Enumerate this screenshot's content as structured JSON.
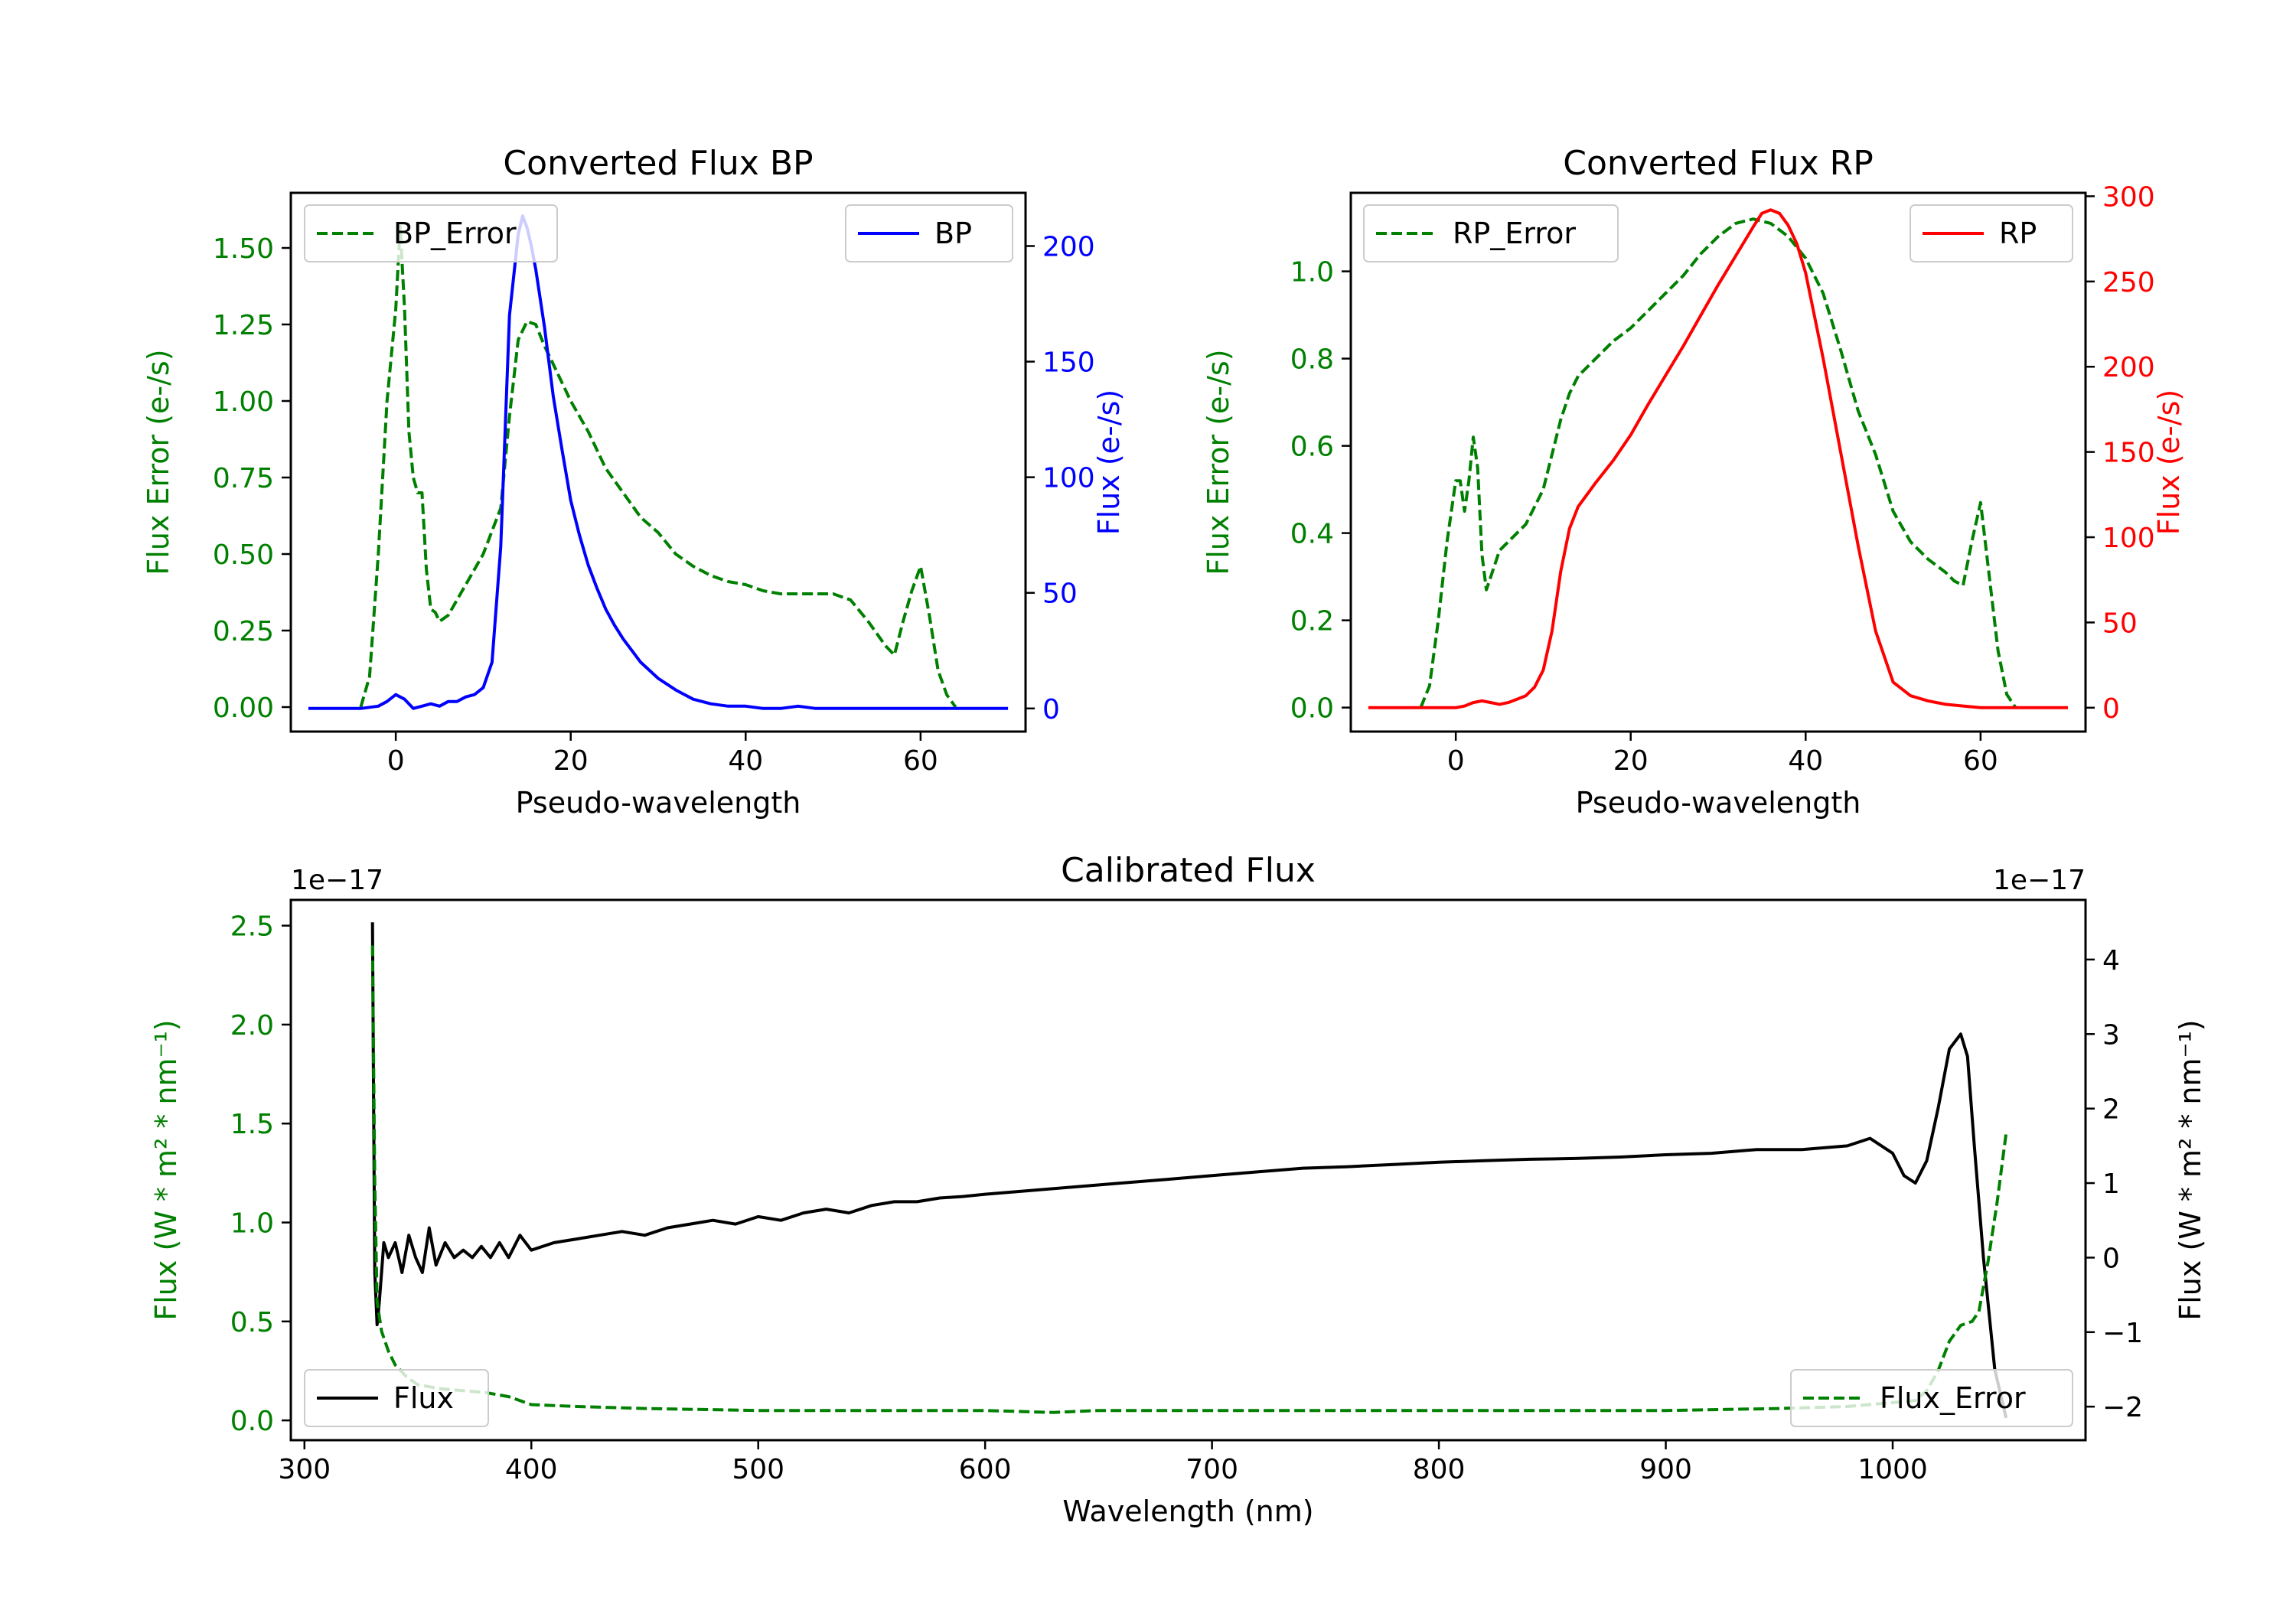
{
  "figure": {
    "colors": {
      "green": "#008000",
      "blue": "#0000ff",
      "red": "#ff0000",
      "black": "#000000"
    }
  },
  "chart_data": [
    {
      "id": "bp",
      "type": "line",
      "title": "Converted Flux BP",
      "xlabel": "Pseudo-wavelength",
      "ylabel_left": "Flux Error (e-/s)",
      "ylabel_right": "Flux (e-/s)",
      "xlim": [
        -12,
        72
      ],
      "ylim_left": [
        -0.08,
        1.68
      ],
      "ylim_right": [
        -10,
        223
      ],
      "xticks": [
        "0",
        "20",
        "40",
        "60"
      ],
      "xtick_values": [
        0,
        20,
        40,
        60
      ],
      "yticks_left": [
        "0.00",
        "0.25",
        "0.50",
        "0.75",
        "1.00",
        "1.25",
        "1.50"
      ],
      "ytick_values_left": [
        0,
        0.25,
        0.5,
        0.75,
        1.0,
        1.25,
        1.5
      ],
      "yticks_right": [
        "0",
        "50",
        "100",
        "150",
        "200"
      ],
      "ytick_values_right": [
        0,
        50,
        100,
        150,
        200
      ],
      "legend_left": "BP_Error",
      "legend_right": "BP",
      "series": [
        {
          "name": "BP_Error",
          "axis": "left",
          "style": "dashed",
          "color": "#008000",
          "x": [
            -4,
            -3,
            -2,
            -1,
            0,
            0.5,
            1,
            1.5,
            2,
            2.5,
            3,
            3.5,
            4,
            4.5,
            5,
            6,
            7,
            8,
            10,
            12,
            13,
            14,
            15,
            16,
            17,
            18,
            20,
            22,
            24,
            26,
            28,
            30,
            32,
            34,
            36,
            38,
            40,
            42,
            44,
            46,
            48,
            50,
            52,
            54,
            56,
            57,
            58,
            59,
            60,
            61,
            62,
            63,
            64
          ],
          "y": [
            0.0,
            0.1,
            0.5,
            1.0,
            1.3,
            1.57,
            1.3,
            0.9,
            0.75,
            0.7,
            0.7,
            0.45,
            0.32,
            0.31,
            0.28,
            0.3,
            0.35,
            0.4,
            0.5,
            0.65,
            0.95,
            1.2,
            1.26,
            1.25,
            1.18,
            1.12,
            1.0,
            0.9,
            0.78,
            0.7,
            0.62,
            0.57,
            0.5,
            0.46,
            0.43,
            0.41,
            0.4,
            0.38,
            0.37,
            0.37,
            0.37,
            0.37,
            0.35,
            0.28,
            0.2,
            0.17,
            0.28,
            0.38,
            0.46,
            0.3,
            0.12,
            0.04,
            0.0
          ]
        },
        {
          "name": "BP",
          "axis": "right",
          "style": "solid",
          "color": "#0000ff",
          "x": [
            -10,
            -6,
            -4,
            -2,
            -1,
            0,
            1,
            2,
            3,
            4,
            5,
            6,
            7,
            8,
            9,
            10,
            11,
            12,
            13,
            14,
            14.5,
            15,
            15.5,
            16,
            17,
            18,
            19,
            20,
            21,
            22,
            23,
            24,
            25,
            26,
            27,
            28,
            30,
            32,
            34,
            36,
            38,
            40,
            42,
            44,
            46,
            48,
            50,
            52,
            54,
            56,
            58,
            60,
            62,
            64,
            66,
            68,
            70
          ],
          "y": [
            0,
            0,
            0,
            1,
            3,
            6,
            4,
            0,
            1,
            2,
            1,
            3,
            3,
            5,
            6,
            9,
            20,
            70,
            170,
            205,
            213,
            208,
            200,
            190,
            165,
            135,
            112,
            90,
            75,
            62,
            52,
            43,
            36,
            30,
            25,
            20,
            13,
            8,
            4,
            2,
            1,
            1,
            0,
            0,
            1,
            0,
            0,
            0,
            0,
            0,
            0,
            0,
            0,
            0,
            0,
            0,
            0
          ]
        }
      ]
    },
    {
      "id": "rp",
      "type": "line",
      "title": "Converted Flux RP",
      "xlabel": "Pseudo-wavelength",
      "ylabel_left": "Flux Error (e-/s)",
      "ylabel_right": "Flux (e-/s)",
      "xlim": [
        -12,
        72
      ],
      "ylim_left": [
        -0.055,
        1.18
      ],
      "ylim_right": [
        -14,
        302
      ],
      "xticks": [
        "0",
        "20",
        "40",
        "60"
      ],
      "xtick_values": [
        0,
        20,
        40,
        60
      ],
      "yticks_left": [
        "0.0",
        "0.2",
        "0.4",
        "0.6",
        "0.8",
        "1.0"
      ],
      "ytick_values_left": [
        0,
        0.2,
        0.4,
        0.6,
        0.8,
        1.0
      ],
      "yticks_right": [
        "0",
        "50",
        "100",
        "150",
        "200",
        "250",
        "300"
      ],
      "ytick_values_right": [
        0,
        50,
        100,
        150,
        200,
        250,
        300
      ],
      "legend_left": "RP_Error",
      "legend_right": "RP",
      "series": [
        {
          "name": "RP_Error",
          "axis": "left",
          "style": "dashed",
          "color": "#008000",
          "x": [
            -4,
            -3,
            -2,
            -1,
            0,
            0.5,
            1,
            1.5,
            2,
            2.5,
            3,
            3.5,
            4,
            5,
            6,
            8,
            10,
            12,
            13,
            14,
            16,
            18,
            20,
            22,
            24,
            26,
            28,
            30,
            32,
            34,
            36,
            38,
            40,
            42,
            44,
            46,
            48,
            50,
            52,
            54,
            56,
            57,
            58,
            59,
            60,
            61,
            62,
            63,
            64
          ],
          "y": [
            0.0,
            0.05,
            0.2,
            0.38,
            0.52,
            0.52,
            0.45,
            0.52,
            0.62,
            0.55,
            0.35,
            0.27,
            0.3,
            0.36,
            0.38,
            0.42,
            0.5,
            0.66,
            0.72,
            0.76,
            0.8,
            0.84,
            0.87,
            0.91,
            0.95,
            0.99,
            1.04,
            1.08,
            1.11,
            1.12,
            1.11,
            1.08,
            1.03,
            0.95,
            0.82,
            0.68,
            0.58,
            0.45,
            0.38,
            0.34,
            0.31,
            0.29,
            0.28,
            0.38,
            0.47,
            0.3,
            0.13,
            0.03,
            0.0
          ]
        },
        {
          "name": "RP",
          "axis": "right",
          "style": "solid",
          "color": "#ff0000",
          "x": [
            -10,
            -5,
            -2,
            0,
            1,
            2,
            3,
            4,
            5,
            6,
            7,
            8,
            9,
            10,
            11,
            12,
            13,
            14,
            15,
            16,
            18,
            20,
            22,
            24,
            26,
            28,
            30,
            32,
            34,
            35,
            36,
            37,
            38,
            39,
            40,
            42,
            44,
            46,
            48,
            50,
            52,
            54,
            56,
            58,
            60,
            62,
            64,
            66,
            68,
            70
          ],
          "y": [
            0,
            0,
            0,
            0,
            1,
            3,
            4,
            3,
            2,
            3,
            5,
            7,
            12,
            22,
            45,
            80,
            105,
            118,
            125,
            132,
            145,
            160,
            178,
            195,
            212,
            230,
            248,
            265,
            282,
            290,
            292,
            290,
            283,
            272,
            255,
            205,
            150,
            95,
            45,
            15,
            7,
            4,
            2,
            1,
            0,
            0,
            0,
            0,
            0,
            0
          ]
        }
      ]
    },
    {
      "id": "calibrated",
      "type": "line",
      "title": "Calibrated Flux",
      "xlabel": "Wavelength (nm)",
      "ylabel_left": "Flux (W * m² * nm⁻¹)",
      "ylabel_right": "Flux (W * m² * nm⁻¹)",
      "offset_left": "1e−17",
      "offset_right": "1e−17",
      "xlim": [
        294,
        1085
      ],
      "ylim_left": [
        -0.1,
        2.63
      ],
      "ylim_right": [
        -2.45,
        4.8
      ],
      "xticks": [
        "300",
        "400",
        "500",
        "600",
        "700",
        "800",
        "900",
        "1000"
      ],
      "xtick_values": [
        300,
        400,
        500,
        600,
        700,
        800,
        900,
        1000
      ],
      "yticks_left": [
        "0.0",
        "0.5",
        "1.0",
        "1.5",
        "2.0",
        "2.5"
      ],
      "ytick_values_left": [
        0,
        0.5,
        1.0,
        1.5,
        2.0,
        2.5
      ],
      "yticks_right": [
        "−2",
        "−1",
        "0",
        "1",
        "2",
        "3",
        "4"
      ],
      "ytick_values_right": [
        -2,
        -1,
        0,
        1,
        2,
        3,
        4
      ],
      "legend_left": "Flux",
      "legend_right": "Flux_Error",
      "series": [
        {
          "name": "Flux",
          "axis": "right",
          "style": "solid",
          "color": "#000000",
          "x": [
            330,
            330.5,
            331,
            332,
            333,
            335,
            337,
            340,
            343,
            346,
            349,
            352,
            355,
            358,
            362,
            366,
            370,
            374,
            378,
            382,
            386,
            390,
            395,
            400,
            410,
            420,
            430,
            440,
            450,
            460,
            470,
            480,
            490,
            500,
            510,
            520,
            530,
            540,
            550,
            560,
            570,
            580,
            590,
            600,
            620,
            640,
            660,
            680,
            700,
            720,
            740,
            760,
            780,
            800,
            820,
            840,
            860,
            880,
            900,
            920,
            940,
            960,
            980,
            990,
            1000,
            1005,
            1010,
            1015,
            1020,
            1025,
            1030,
            1033,
            1036,
            1040,
            1045,
            1050
          ],
          "y": [
            4.5,
            2.0,
            -0.2,
            -0.9,
            -0.6,
            0.2,
            0.0,
            0.2,
            -0.2,
            0.3,
            0.0,
            -0.2,
            0.4,
            -0.1,
            0.2,
            0.0,
            0.1,
            0.0,
            0.15,
            0.0,
            0.2,
            0.0,
            0.3,
            0.1,
            0.2,
            0.25,
            0.3,
            0.35,
            0.3,
            0.4,
            0.45,
            0.5,
            0.45,
            0.55,
            0.5,
            0.6,
            0.65,
            0.6,
            0.7,
            0.75,
            0.75,
            0.8,
            0.82,
            0.85,
            0.9,
            0.95,
            1.0,
            1.05,
            1.1,
            1.15,
            1.2,
            1.22,
            1.25,
            1.28,
            1.3,
            1.32,
            1.33,
            1.35,
            1.38,
            1.4,
            1.45,
            1.45,
            1.5,
            1.6,
            1.4,
            1.1,
            1.0,
            1.3,
            2.0,
            2.8,
            3.0,
            2.7,
            1.5,
            0.0,
            -1.5,
            -2.15
          ]
        },
        {
          "name": "Flux_Error",
          "axis": "left",
          "style": "dashed",
          "color": "#008000",
          "x": [
            330,
            331,
            332,
            334,
            337,
            340,
            345,
            350,
            360,
            370,
            380,
            390,
            400,
            420,
            450,
            500,
            550,
            600,
            630,
            650,
            700,
            750,
            800,
            850,
            900,
            950,
            980,
            1000,
            1010,
            1015,
            1020,
            1025,
            1030,
            1035,
            1038,
            1042,
            1046,
            1050
          ],
          "y": [
            2.4,
            1.2,
            0.6,
            0.45,
            0.35,
            0.28,
            0.22,
            0.18,
            0.16,
            0.15,
            0.14,
            0.12,
            0.08,
            0.07,
            0.06,
            0.05,
            0.05,
            0.05,
            0.04,
            0.05,
            0.05,
            0.05,
            0.05,
            0.05,
            0.05,
            0.06,
            0.07,
            0.09,
            0.1,
            0.15,
            0.25,
            0.4,
            0.48,
            0.5,
            0.55,
            0.8,
            1.1,
            1.45
          ]
        }
      ]
    }
  ]
}
